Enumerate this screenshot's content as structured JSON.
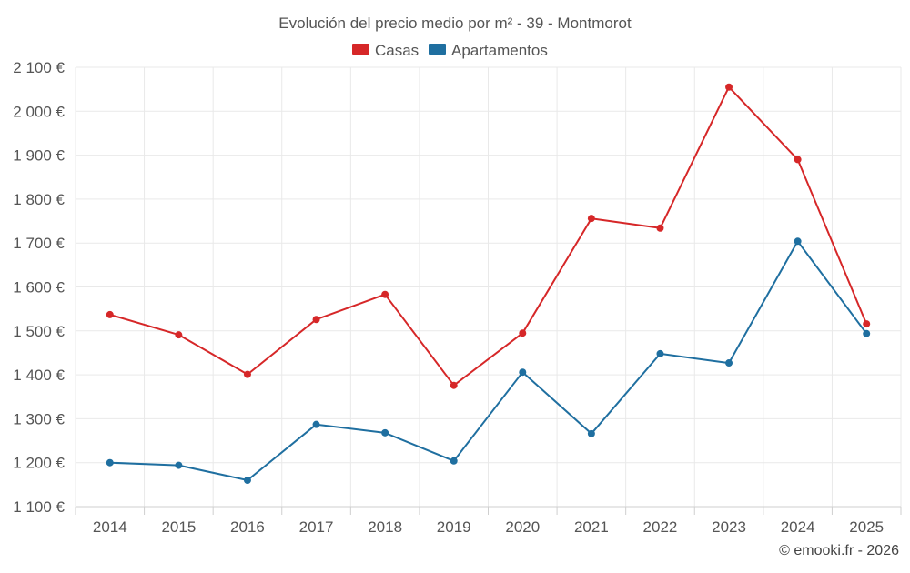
{
  "chart_data": {
    "type": "line",
    "title": "Evolución del precio medio por m² - 39 - Montmorot",
    "xlabel": "",
    "ylabel": "",
    "categories": [
      "2014",
      "2015",
      "2016",
      "2017",
      "2018",
      "2019",
      "2020",
      "2021",
      "2022",
      "2023",
      "2024",
      "2025"
    ],
    "series": [
      {
        "name": "Casas",
        "color": "#d62728",
        "values": [
          1537,
          1491,
          1401,
          1526,
          1583,
          1376,
          1495,
          1756,
          1734,
          2055,
          1890,
          1516
        ]
      },
      {
        "name": "Apartamentos",
        "color": "#1f6fa0",
        "values": [
          1200,
          1194,
          1160,
          1287,
          1268,
          1204,
          1406,
          1266,
          1448,
          1427,
          1704,
          1494
        ]
      }
    ],
    "ylim": [
      1100,
      2100
    ],
    "yticks": [
      1100,
      1200,
      1300,
      1400,
      1500,
      1600,
      1700,
      1800,
      1900,
      2000,
      2100
    ],
    "ytick_labels": [
      "1 100 €",
      "1 200 €",
      "1 300 €",
      "1 400 €",
      "1 500 €",
      "1 600 €",
      "1 700 €",
      "1 800 €",
      "1 900 €",
      "2 000 €",
      "2 100 €"
    ],
    "grid": true,
    "legend_position": "top-center"
  },
  "credit": "© emooki.fr - 2026"
}
